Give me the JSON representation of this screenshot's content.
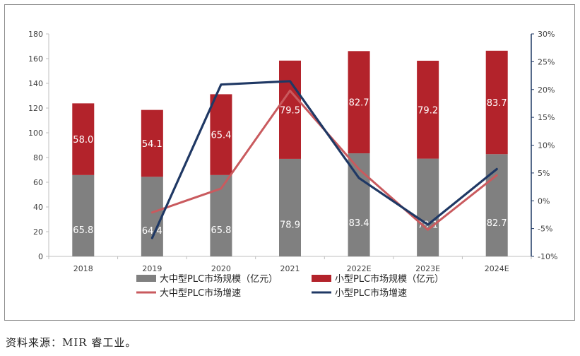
{
  "chart_data": {
    "type": "bar",
    "categories": [
      "2018",
      "2019",
      "2020",
      "2021",
      "2022E",
      "2023E",
      "2024E"
    ],
    "series": [
      {
        "name": "大中型PLC市场规模（亿元）",
        "kind": "stacked-bar",
        "axis": "left",
        "color": "#808080",
        "values": [
          65.8,
          64.4,
          65.8,
          78.9,
          83.4,
          79.1,
          82.7
        ]
      },
      {
        "name": "小型PLC市场规模（亿元）",
        "kind": "stacked-bar",
        "axis": "left",
        "color": "#b3232b",
        "values": [
          58.0,
          54.1,
          65.4,
          79.5,
          82.7,
          79.2,
          83.7
        ]
      },
      {
        "name": "大中型PLC市场增速",
        "kind": "line",
        "axis": "right",
        "color": "#c95a5e",
        "values": [
          null,
          -2.1,
          2.2,
          19.8,
          5.7,
          -5.2,
          4.6
        ]
      },
      {
        "name": "小型PLC市场增速",
        "kind": "line",
        "axis": "right",
        "color": "#1f3864",
        "values": [
          null,
          -6.7,
          20.9,
          21.5,
          4.1,
          -4.3,
          5.7
        ]
      }
    ],
    "left_axis": {
      "min": 0,
      "max": 180,
      "step": 20,
      "ticks": [
        "0",
        "20",
        "40",
        "60",
        "80",
        "100",
        "120",
        "140",
        "160",
        "180"
      ]
    },
    "right_axis": {
      "min": -10,
      "max": 30,
      "step": 5,
      "ticks": [
        "-10%",
        "-5%",
        "0%",
        "5%",
        "10%",
        "15%",
        "20%",
        "25%",
        "30%"
      ]
    },
    "bar_labels": {
      "lower": [
        "65.8",
        "64.4",
        "65.8",
        "78.9",
        "83.4",
        "79.1",
        "82.7"
      ],
      "upper": [
        "58.0",
        "54.1",
        "65.4",
        "79.5",
        "82.7",
        "79.2",
        "83.7"
      ]
    },
    "legend_position": "bottom",
    "grid": false
  },
  "source_text": "资料来源：MIR 睿工业。"
}
